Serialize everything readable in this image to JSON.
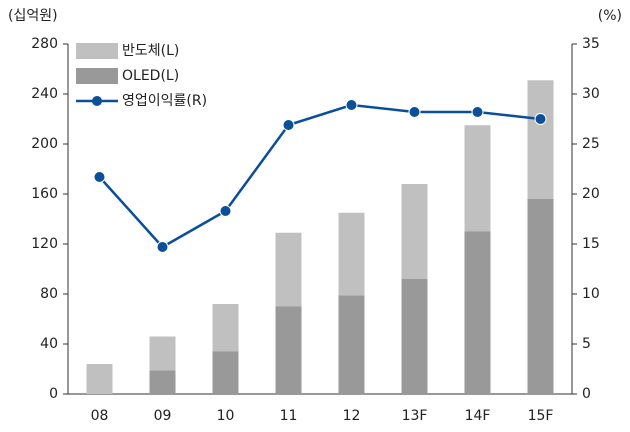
{
  "chart_data": {
    "type": "bar",
    "ylabel": "(십억원)",
    "y2label": "(%)",
    "categories": [
      "08",
      "09",
      "10",
      "11",
      "12",
      "13F",
      "14F",
      "15F"
    ],
    "series": [
      {
        "name": "반도체(L)",
        "type": "bar",
        "color": "#c0c0c0",
        "values": [
          24,
          27,
          38,
          59,
          66,
          76,
          85,
          95
        ]
      },
      {
        "name": "OLED(L)",
        "type": "bar",
        "color": "#999999",
        "values": [
          0,
          19,
          34,
          70,
          79,
          92,
          130,
          156
        ]
      },
      {
        "name": "영업이익률(R)",
        "type": "line",
        "axis": "y2",
        "color": "#0b4f9a",
        "values": [
          21.7,
          14.7,
          18.3,
          26.9,
          28.9,
          28.2,
          28.2,
          27.5
        ]
      }
    ],
    "stacked": true,
    "ylim": [
      0,
      280
    ],
    "yticks": [
      0,
      40,
      80,
      120,
      160,
      200,
      240,
      280
    ],
    "y2lim": [
      0,
      35
    ],
    "y2ticks": [
      0,
      5,
      10,
      15,
      20,
      25,
      30,
      35
    ],
    "legend": "upper left"
  }
}
